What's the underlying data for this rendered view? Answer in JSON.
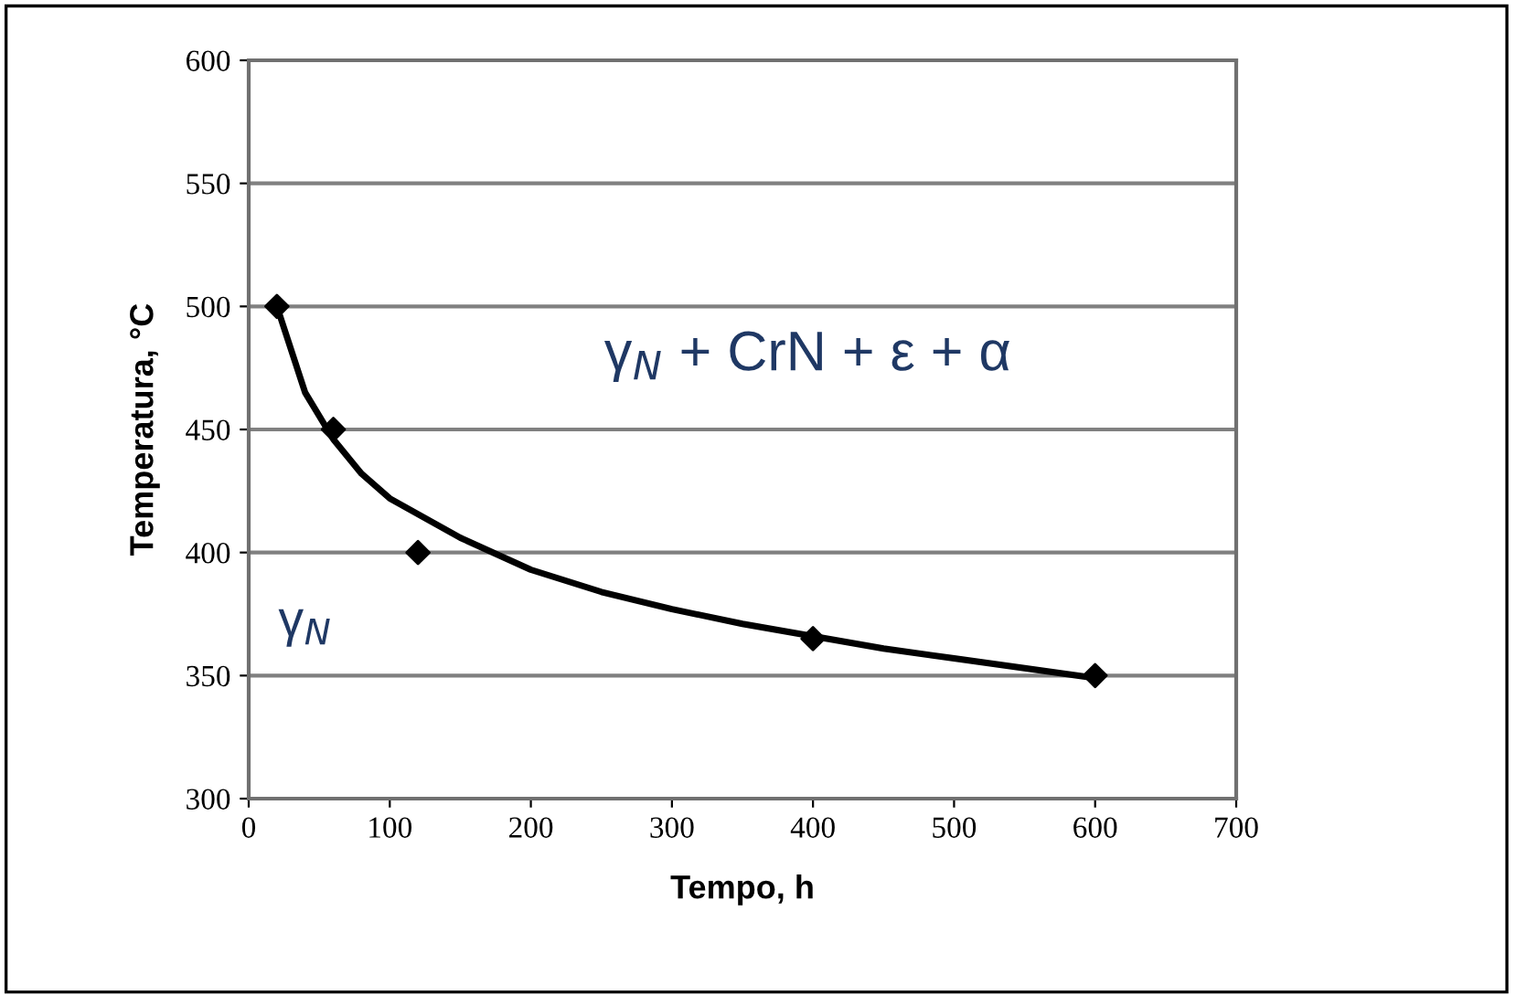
{
  "chart_data": {
    "type": "scatter",
    "xlabel": "Tempo, h",
    "ylabel": "Temperatura, °C",
    "xlim": [
      0,
      700
    ],
    "xticks": [
      0,
      100,
      200,
      300,
      400,
      500,
      600,
      700
    ],
    "ylim": [
      300,
      600
    ],
    "yticks": [
      300,
      350,
      400,
      450,
      500,
      550,
      600
    ],
    "grid": "y",
    "legend": false,
    "marker": "diamond",
    "series": [
      {
        "color": "#000000",
        "x": [
          20,
          60,
          120,
          400,
          600
        ],
        "values": [
          500,
          450,
          400,
          365,
          350
        ]
      },
      {
        "type": "line",
        "color": "#000000",
        "marker": "none",
        "line_style": "solid",
        "x": [
          20,
          40,
          60,
          80,
          100,
          150,
          200,
          250,
          300,
          350,
          400,
          450,
          500,
          550,
          600
        ],
        "values": [
          500,
          465,
          446,
          432,
          422,
          406,
          393,
          384,
          377,
          371,
          366,
          361,
          357,
          353,
          349
        ]
      }
    ],
    "annotations": [
      "γ$_{N}$ + CrN + ε + α",
      "γ$_{N}$"
    ]
  }
}
